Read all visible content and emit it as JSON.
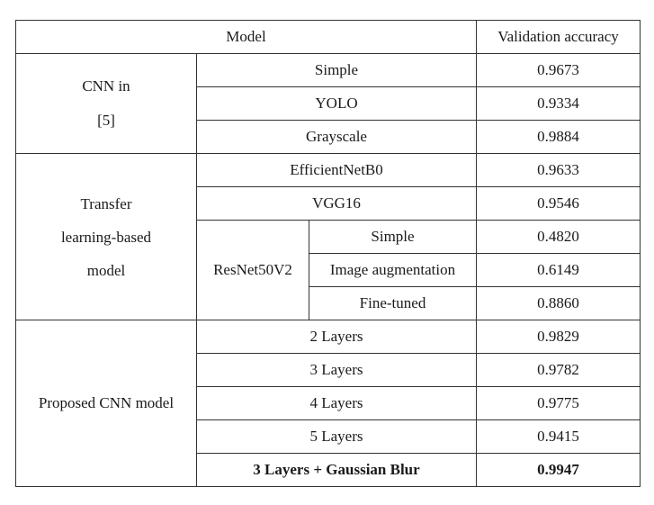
{
  "header": {
    "model": "Model",
    "accuracy": "Validation accuracy"
  },
  "groups": {
    "cnn": {
      "label_line1": "CNN in",
      "label_line2": "[5]",
      "rows": [
        {
          "variant": "Simple",
          "accuracy": "0.9673"
        },
        {
          "variant": "YOLO",
          "accuracy": "0.9334"
        },
        {
          "variant": "Grayscale",
          "accuracy": "0.9884"
        }
      ]
    },
    "transfer": {
      "label_line1": "Transfer",
      "label_line2": "learning-based",
      "label_line3": "model",
      "rows": [
        {
          "variant": "EfficientNetB0",
          "accuracy": "0.9633"
        },
        {
          "variant": "VGG16",
          "accuracy": "0.9546"
        }
      ],
      "resnet": {
        "label": "ResNet50V2",
        "rows": [
          {
            "variant": "Simple",
            "accuracy": "0.4820"
          },
          {
            "variant": "Image augmentation",
            "accuracy": "0.6149"
          },
          {
            "variant": "Fine-tuned",
            "accuracy": "0.8860"
          }
        ]
      }
    },
    "proposed": {
      "label": "Proposed CNN model",
      "rows": [
        {
          "variant": "2 Layers",
          "accuracy": "0.9829"
        },
        {
          "variant": "3 Layers",
          "accuracy": "0.9782"
        },
        {
          "variant": "4 Layers",
          "accuracy": "0.9775"
        },
        {
          "variant": "5 Layers",
          "accuracy": "0.9415"
        },
        {
          "variant": "3 Layers + Gaussian Blur",
          "accuracy": "0.9947"
        }
      ]
    }
  }
}
